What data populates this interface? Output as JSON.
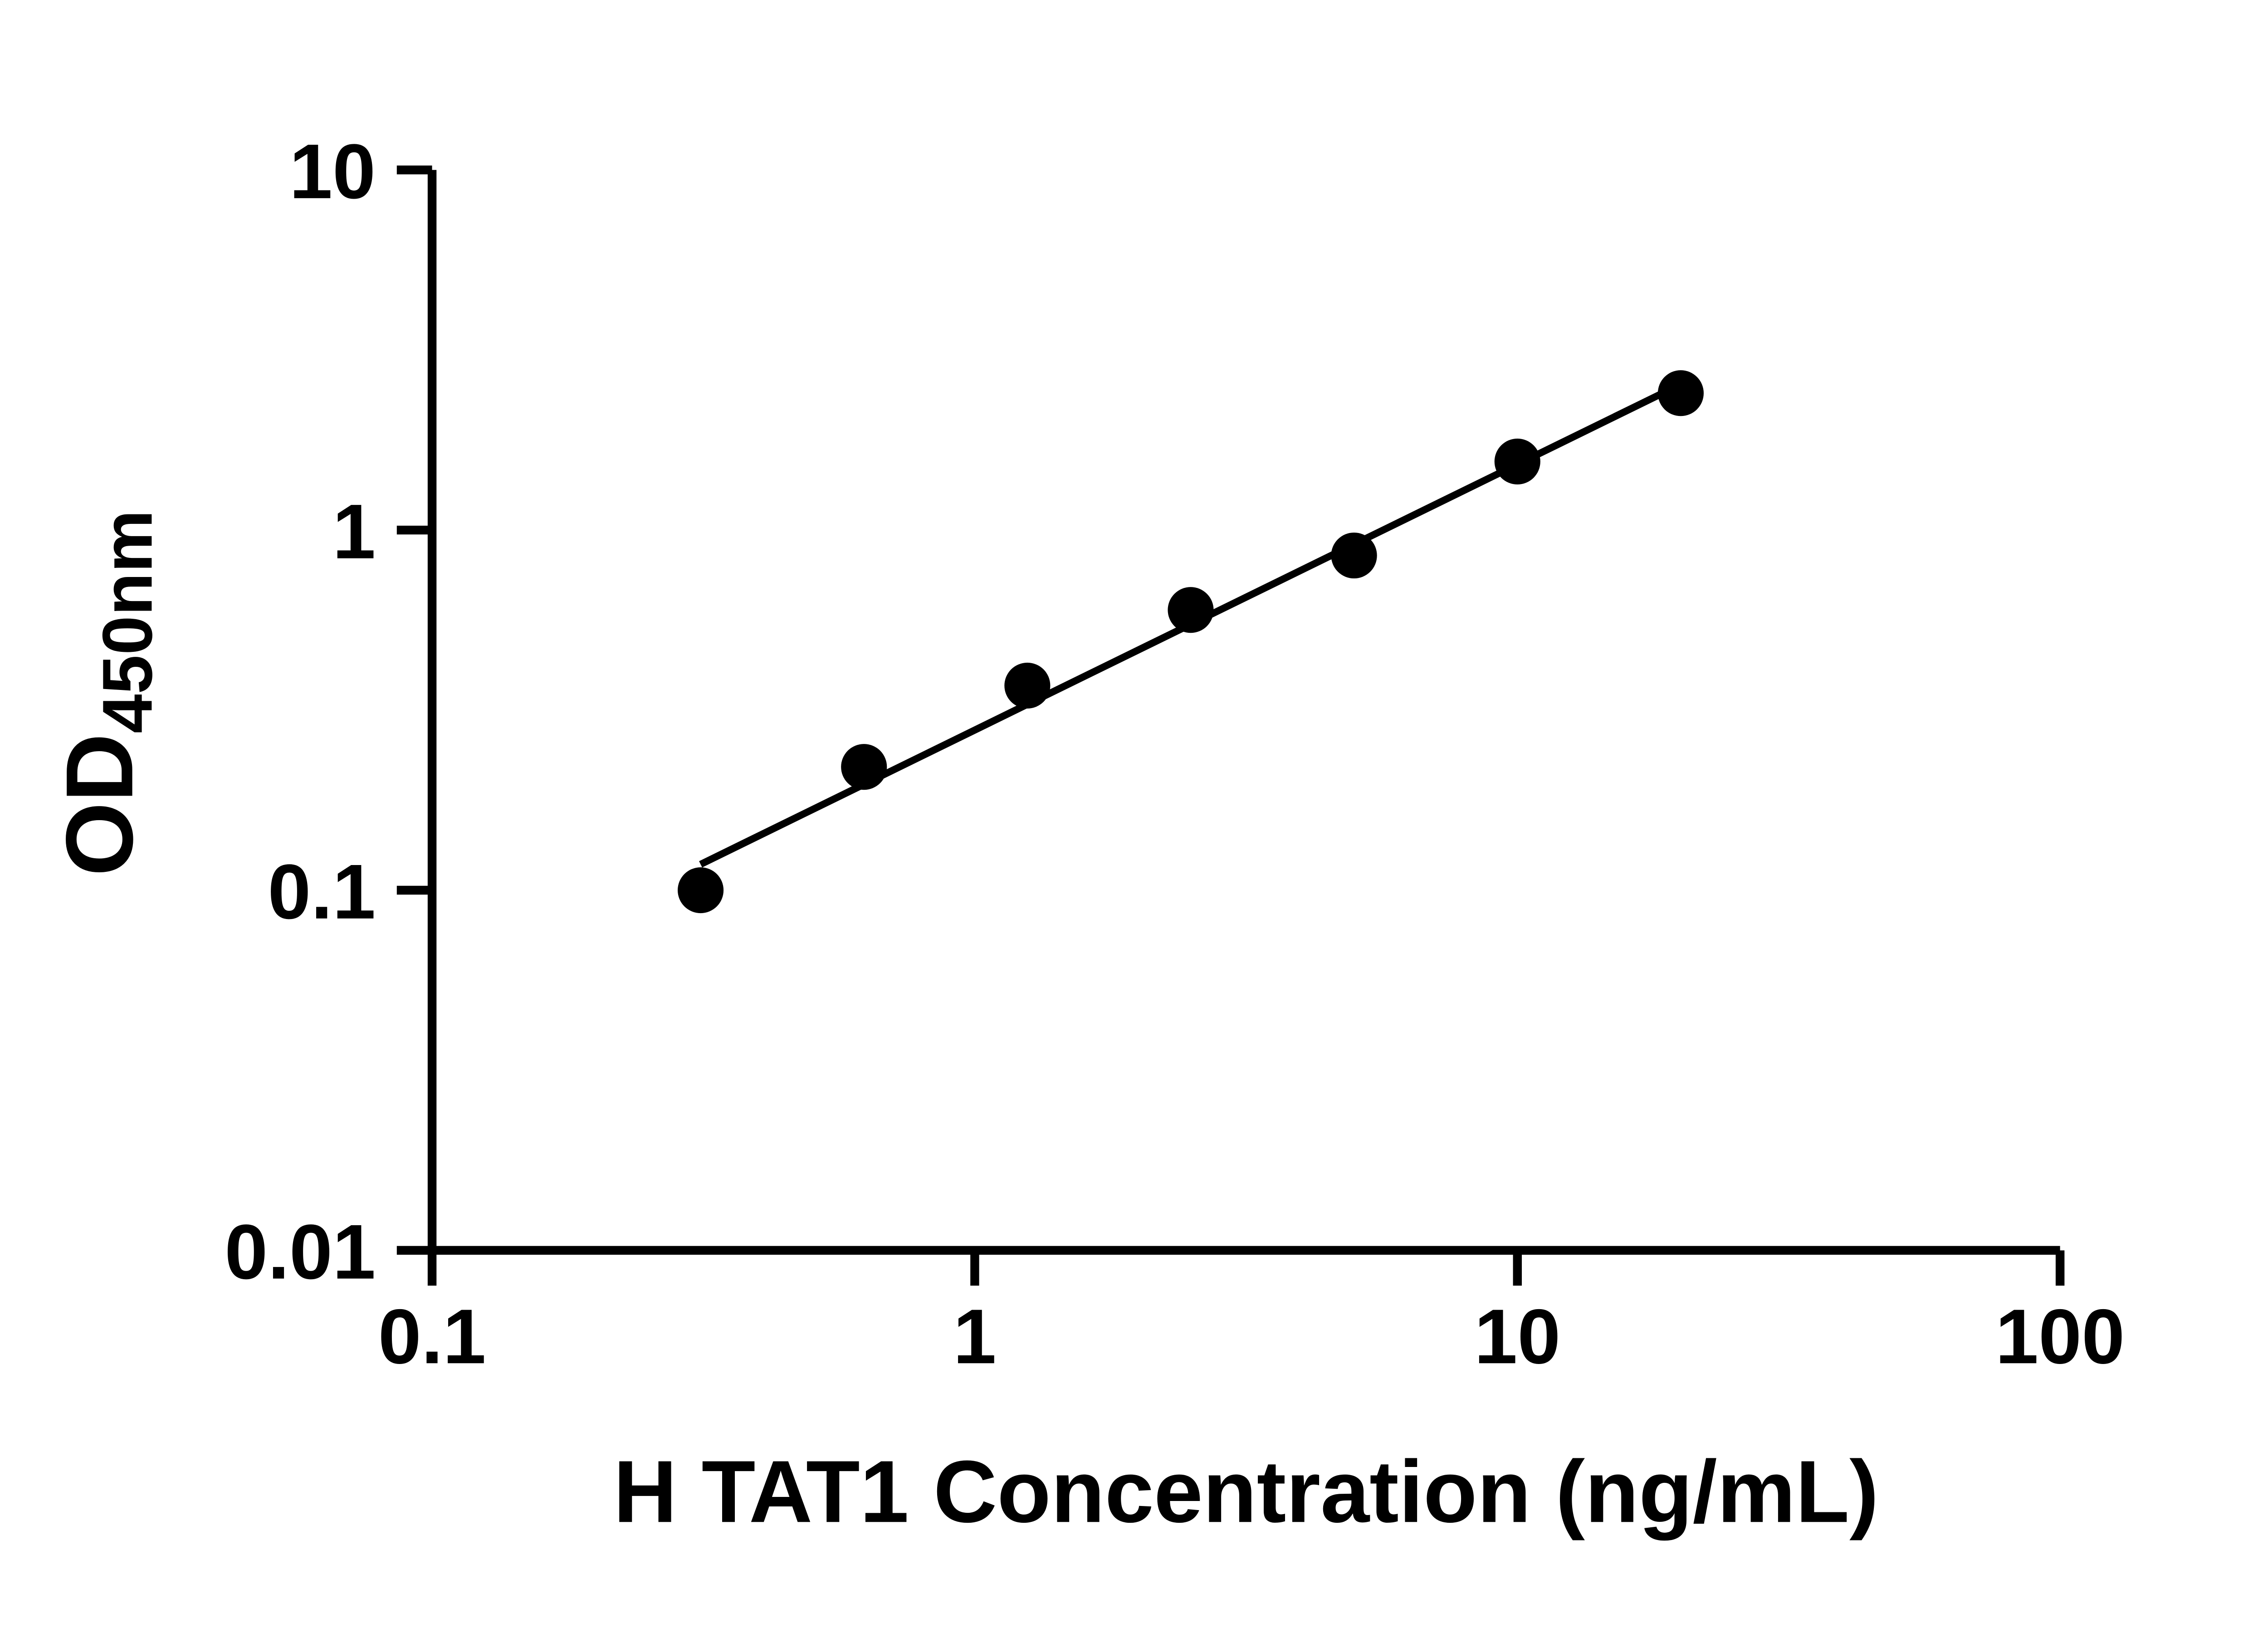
{
  "figure": {
    "background": "#ffffff",
    "axis_color": "#000000"
  },
  "chart_data": {
    "type": "scatter",
    "title": "",
    "xlabel": "H TAT1 Concentration (ng/mL)",
    "ylabel": "OD",
    "ylabel_subscript": "450nm",
    "x_scale": "log",
    "y_scale": "log",
    "xlim": [
      0.1,
      100
    ],
    "ylim": [
      0.01,
      10
    ],
    "x_ticks": [
      0.1,
      1,
      10,
      100
    ],
    "x_tick_labels": [
      "0.1",
      "1",
      "10",
      "100"
    ],
    "y_ticks": [
      0.01,
      0.1,
      1,
      10
    ],
    "y_tick_labels": [
      "0.01",
      "0.1",
      "1",
      "10"
    ],
    "grid": false,
    "legend": null,
    "marker_color": "#000000",
    "line_color": "#000000",
    "points": {
      "x": [
        0.3125,
        0.625,
        1.25,
        2.5,
        5,
        10,
        20
      ],
      "y": [
        0.1,
        0.22,
        0.37,
        0.6,
        0.85,
        1.55,
        2.4
      ]
    },
    "trend_line": {
      "x": [
        0.3125,
        20
      ],
      "y": [
        0.118,
        2.54
      ]
    }
  }
}
